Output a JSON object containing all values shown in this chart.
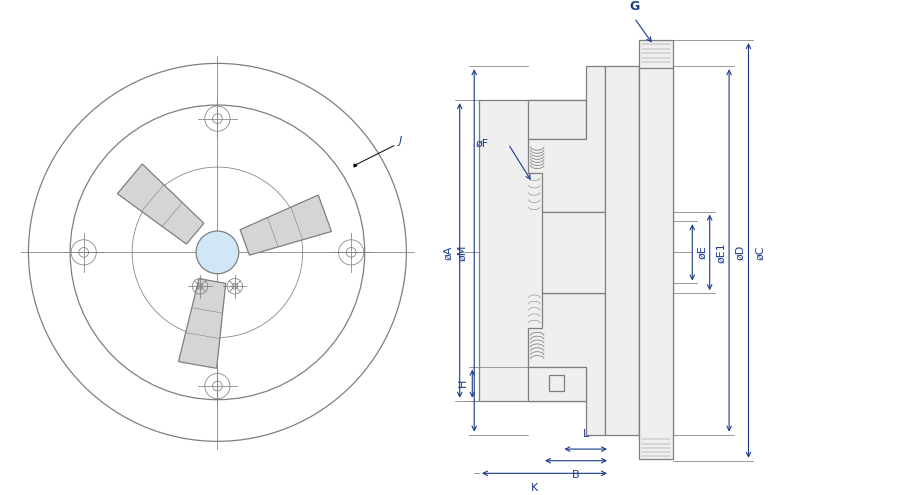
{
  "bg_color": "#ffffff",
  "line_color": "#7f7f7f",
  "dim_color": "#1a3a8c",
  "lw": 0.9,
  "tlw": 0.55,
  "labels": {
    "A": "øA",
    "M": "øM",
    "C": "øC",
    "D": "øD",
    "E": "øE",
    "E1": "øE1",
    "F": "øF",
    "G": "G",
    "H": "H",
    "K": "K",
    "B": "B",
    "L": "L",
    "J": "J"
  }
}
